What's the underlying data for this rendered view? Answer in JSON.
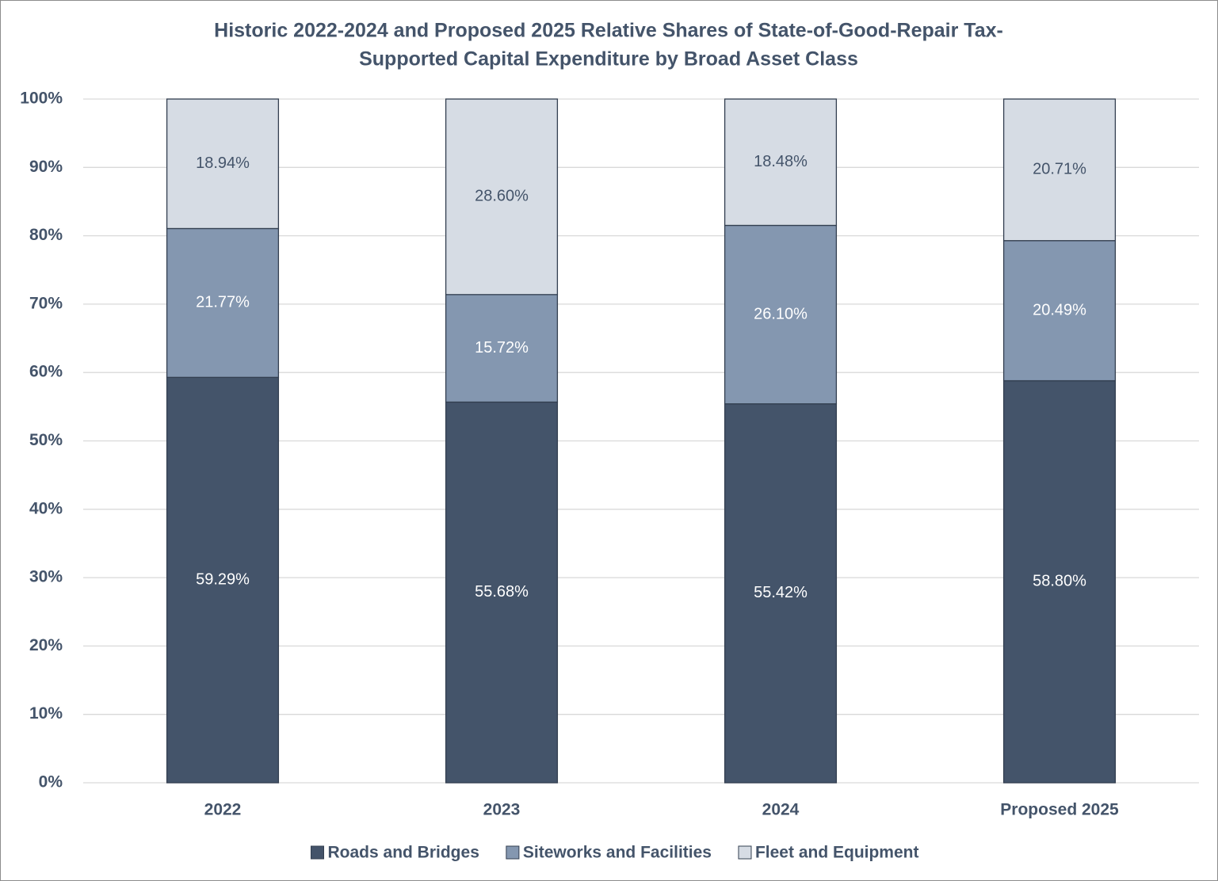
{
  "chart_data": {
    "type": "stacked_bar",
    "title": [
      "Historic 2022-2024 and Proposed 2025 Relative Shares of State-of-Good-Repair Tax-",
      "Supported Capital Expenditure by Broad Asset Class"
    ],
    "categories": [
      "2022",
      "2023",
      "2024",
      "Proposed 2025"
    ],
    "series": [
      {
        "name": "Roads and Bridges",
        "color": "#44546a",
        "label_color": "#ffffff",
        "values": [
          59.29,
          55.68,
          55.42,
          58.8
        ],
        "value_labels": [
          "59.29%",
          "55.68%",
          "55.42%",
          "58.80%"
        ]
      },
      {
        "name": "Siteworks and Facilities",
        "color": "#8497b0",
        "label_color": "#ffffff",
        "values": [
          21.77,
          15.72,
          26.1,
          20.49
        ],
        "value_labels": [
          "21.77%",
          "15.72%",
          "26.10%",
          "20.49%"
        ]
      },
      {
        "name": "Fleet and Equipment",
        "color": "#d6dce4",
        "label_color": "#44546a",
        "values": [
          18.94,
          28.6,
          18.48,
          20.71
        ],
        "value_labels": [
          "18.94%",
          "28.60%",
          "18.48%",
          "20.71%"
        ]
      }
    ],
    "ylim": [
      0,
      100
    ],
    "yticks": [
      {
        "value": 0,
        "label": "0%"
      },
      {
        "value": 10,
        "label": "10%"
      },
      {
        "value": 20,
        "label": "20%"
      },
      {
        "value": 30,
        "label": "30%"
      },
      {
        "value": 40,
        "label": "40%"
      },
      {
        "value": 50,
        "label": "50%"
      },
      {
        "value": 60,
        "label": "60%"
      },
      {
        "value": 70,
        "label": "70%"
      },
      {
        "value": 80,
        "label": "80%"
      },
      {
        "value": 90,
        "label": "90%"
      },
      {
        "value": 100,
        "label": "100%"
      }
    ],
    "grid": true,
    "legend": "bottom"
  }
}
